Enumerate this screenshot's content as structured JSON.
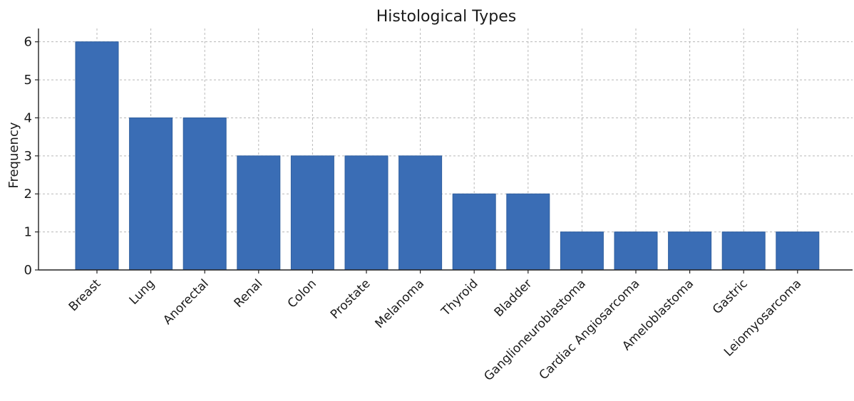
{
  "chart_data": {
    "type": "bar",
    "title": "Histological Types",
    "xlabel": "",
    "ylabel": "Frequency",
    "categories": [
      "Breast",
      "Lung",
      "Anorectal",
      "Renal",
      "Colon",
      "Prostate",
      "Melanoma",
      "Thyroid",
      "Bladder",
      "Ganglioneuroblastoma",
      "Cardiac Angiosarcoma",
      "Ameloblastoma",
      "Gastric",
      "Leiomyosarcoma"
    ],
    "values": [
      6,
      4,
      4,
      3,
      3,
      3,
      3,
      2,
      2,
      1,
      1,
      1,
      1,
      1
    ],
    "yticks": [
      "0",
      "1",
      "2",
      "3",
      "4",
      "5",
      "6"
    ],
    "ylim": [
      0,
      6.35
    ],
    "grid": true,
    "bar_color": "#3a6db5",
    "bar_edge_color": "#2f5f9f"
  }
}
